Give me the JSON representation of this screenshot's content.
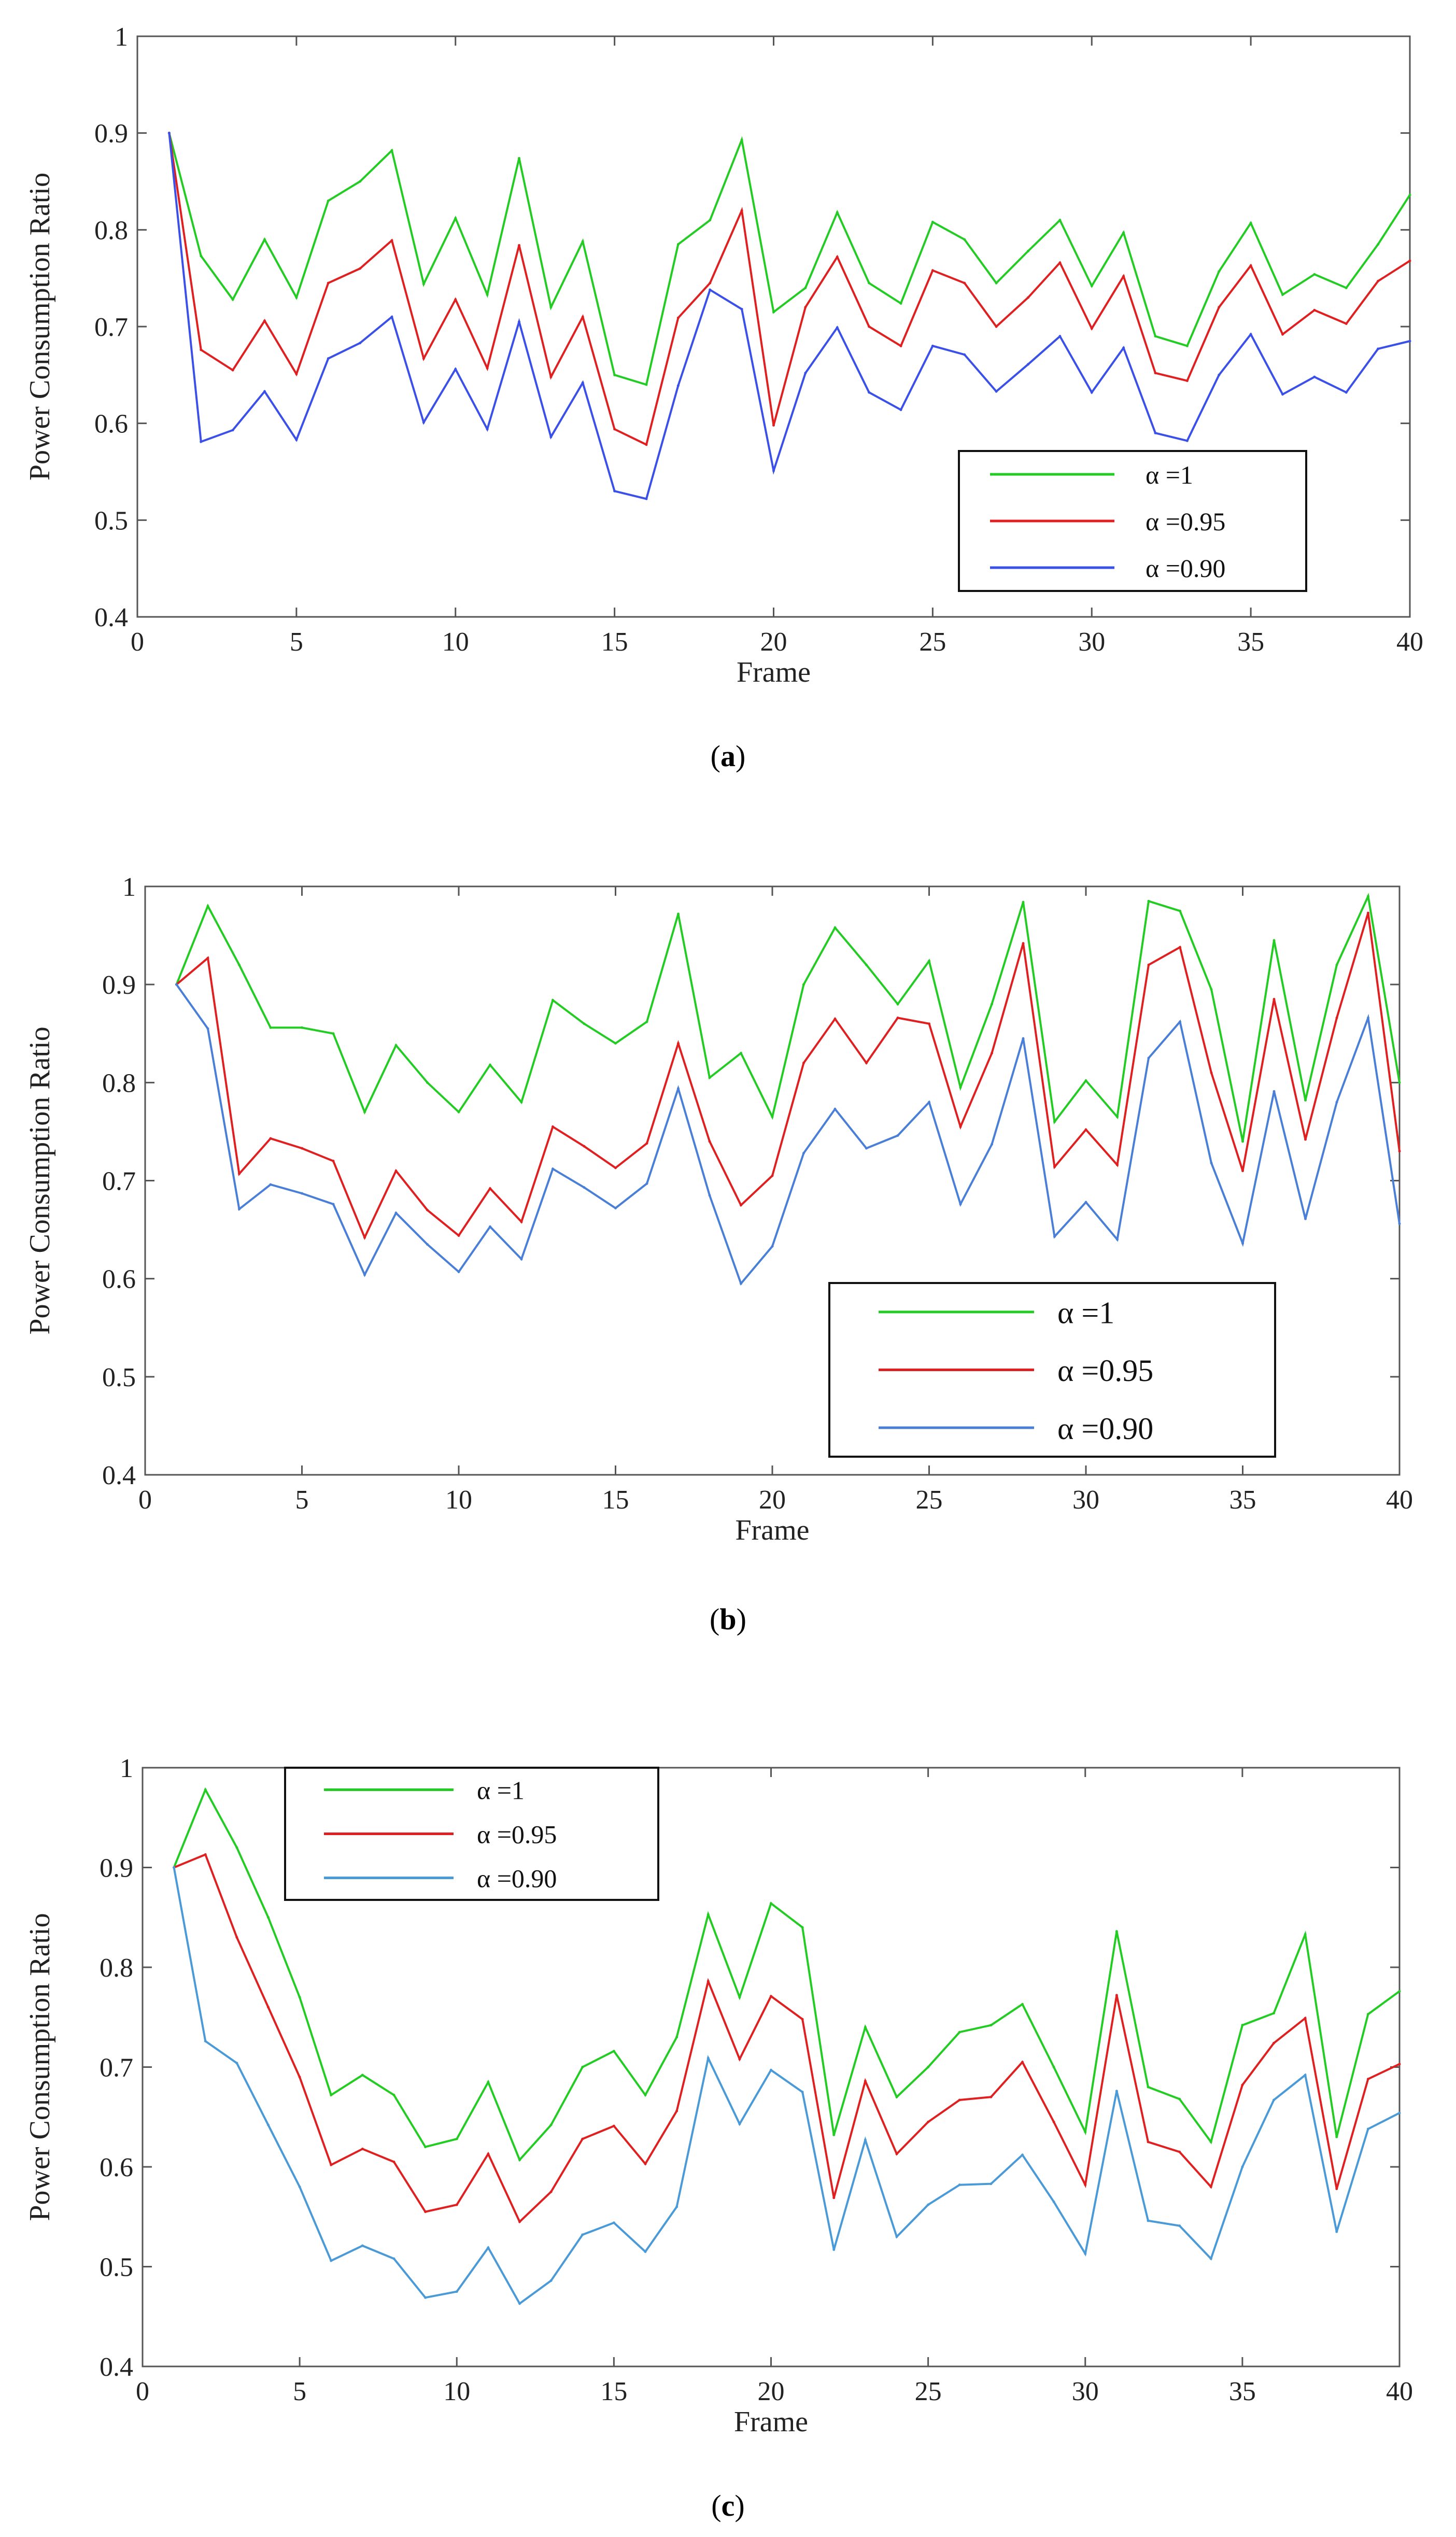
{
  "figure": {
    "captions": [
      {
        "open": "(",
        "letter": "a",
        "close": ")"
      },
      {
        "open": "(",
        "letter": "b",
        "close": ")"
      },
      {
        "open": "(",
        "letter": "c",
        "close": ")"
      }
    ]
  },
  "chart_data": [
    {
      "type": "line",
      "panel": "a",
      "title": "",
      "xlabel": "Frame",
      "ylabel": "Power Consumption Ratio",
      "xlim": [
        0,
        40
      ],
      "ylim": [
        0.4,
        1
      ],
      "xticks": [
        0,
        5,
        10,
        15,
        20,
        25,
        30,
        35,
        40
      ],
      "yticks": [
        0.4,
        0.5,
        0.6,
        0.7,
        0.8,
        0.9,
        1
      ],
      "ytick_labels": [
        "0.4",
        "0.5",
        "0.6",
        "0.7",
        "0.8",
        "0.9",
        "1"
      ],
      "legend_position": "lower-right",
      "x": [
        1,
        2,
        3,
        4,
        5,
        6,
        7,
        8,
        9,
        10,
        11,
        12,
        13,
        14,
        15,
        16,
        17,
        18,
        19,
        20,
        21,
        22,
        23,
        24,
        25,
        26,
        27,
        28,
        29,
        30,
        31,
        32,
        33,
        34,
        35,
        36,
        37,
        38,
        39,
        40
      ],
      "series": [
        {
          "name": "α =1",
          "color": "#22cc22",
          "values": [
            0.9,
            0.773,
            0.728,
            0.79,
            0.73,
            0.83,
            0.85,
            0.882,
            0.744,
            0.812,
            0.733,
            0.874,
            0.72,
            0.788,
            0.65,
            0.64,
            0.785,
            0.81,
            0.893,
            0.715,
            0.74,
            0.818,
            0.745,
            0.724,
            0.808,
            0.79,
            0.745,
            0.778,
            0.81,
            0.742,
            0.797,
            0.69,
            0.68,
            0.757,
            0.807,
            0.733,
            0.754,
            0.74,
            0.785,
            0.836
          ]
        },
        {
          "name": "α =0.95",
          "color": "#e02020",
          "values": [
            0.9,
            0.676,
            0.655,
            0.706,
            0.651,
            0.745,
            0.76,
            0.789,
            0.667,
            0.728,
            0.657,
            0.784,
            0.648,
            0.71,
            0.594,
            0.578,
            0.709,
            0.745,
            0.82,
            0.598,
            0.72,
            0.772,
            0.7,
            0.68,
            0.758,
            0.745,
            0.7,
            0.73,
            0.766,
            0.698,
            0.752,
            0.652,
            0.644,
            0.72,
            0.763,
            0.692,
            0.717,
            0.703,
            0.747,
            0.768
          ]
        },
        {
          "name": "α =0.90",
          "color": "#3a50e8",
          "values": [
            0.9,
            0.581,
            0.593,
            0.633,
            0.583,
            0.667,
            0.683,
            0.71,
            0.601,
            0.656,
            0.594,
            0.705,
            0.586,
            0.642,
            0.53,
            0.522,
            0.639,
            0.738,
            0.718,
            0.551,
            0.652,
            0.699,
            0.632,
            0.614,
            0.68,
            0.671,
            0.633,
            0.661,
            0.69,
            0.632,
            0.678,
            0.59,
            0.582,
            0.65,
            0.692,
            0.63,
            0.648,
            0.632,
            0.677,
            0.685
          ]
        }
      ]
    },
    {
      "type": "line",
      "panel": "b",
      "title": "",
      "xlabel": "Frame",
      "ylabel": "Power Consumption Ratio",
      "xlim": [
        0,
        40
      ],
      "ylim": [
        0.4,
        1
      ],
      "xticks": [
        0,
        5,
        10,
        15,
        20,
        25,
        30,
        35,
        40
      ],
      "yticks": [
        0.4,
        0.5,
        0.6,
        0.7,
        0.8,
        0.9,
        1
      ],
      "ytick_labels": [
        "0.4",
        "0.5",
        "0.6",
        "0.7",
        "0.8",
        "0.9",
        "1"
      ],
      "legend_position": "lower-right",
      "x": [
        1,
        2,
        3,
        4,
        5,
        6,
        7,
        8,
        9,
        10,
        11,
        12,
        13,
        14,
        15,
        16,
        17,
        18,
        19,
        20,
        21,
        22,
        23,
        24,
        25,
        26,
        27,
        28,
        29,
        30,
        31,
        32,
        33,
        34,
        35,
        36,
        37,
        38,
        39,
        40
      ],
      "series": [
        {
          "name": "α =1",
          "color": "#22cc22",
          "values": [
            0.9,
            0.98,
            0.92,
            0.856,
            0.856,
            0.85,
            0.77,
            0.838,
            0.8,
            0.77,
            0.818,
            0.78,
            0.884,
            0.86,
            0.84,
            0.862,
            0.972,
            0.805,
            0.83,
            0.765,
            0.9,
            0.958,
            0.92,
            0.88,
            0.924,
            0.795,
            0.88,
            0.984,
            0.76,
            0.802,
            0.765,
            0.985,
            0.975,
            0.895,
            0.74,
            0.945,
            0.782,
            0.92,
            0.99,
            0.8
          ]
        },
        {
          "name": "α =0.95",
          "color": "#e02020",
          "values": [
            0.9,
            0.927,
            0.707,
            0.743,
            0.733,
            0.72,
            0.642,
            0.71,
            0.67,
            0.644,
            0.692,
            0.658,
            0.755,
            0.735,
            0.713,
            0.738,
            0.84,
            0.74,
            0.675,
            0.705,
            0.82,
            0.865,
            0.82,
            0.866,
            0.86,
            0.755,
            0.83,
            0.942,
            0.714,
            0.752,
            0.716,
            0.92,
            0.938,
            0.81,
            0.71,
            0.885,
            0.742,
            0.866,
            0.973,
            0.73
          ]
        },
        {
          "name": "α =0.90",
          "color": "#4a7fd8",
          "values": [
            0.9,
            0.855,
            0.671,
            0.696,
            0.687,
            0.676,
            0.604,
            0.667,
            0.635,
            0.607,
            0.653,
            0.62,
            0.712,
            0.693,
            0.672,
            0.697,
            0.794,
            0.685,
            0.595,
            0.633,
            0.728,
            0.773,
            0.733,
            0.746,
            0.78,
            0.676,
            0.737,
            0.845,
            0.643,
            0.678,
            0.64,
            0.825,
            0.862,
            0.718,
            0.636,
            0.791,
            0.661,
            0.78,
            0.866,
            0.656
          ]
        }
      ]
    },
    {
      "type": "line",
      "panel": "c",
      "title": "",
      "xlabel": "Frame",
      "ylabel": "Power Consumption Ratio",
      "xlim": [
        0,
        40
      ],
      "ylim": [
        0.4,
        1
      ],
      "xticks": [
        0,
        5,
        10,
        15,
        20,
        25,
        30,
        35,
        40
      ],
      "yticks": [
        0.4,
        0.5,
        0.6,
        0.7,
        0.8,
        0.9,
        1
      ],
      "ytick_labels": [
        "0.4",
        "0.5",
        "0.6",
        "0.7",
        "0.8",
        "0.9",
        "1"
      ],
      "legend_position": "top-left",
      "x": [
        1,
        2,
        3,
        4,
        5,
        6,
        7,
        8,
        9,
        10,
        11,
        12,
        13,
        14,
        15,
        16,
        17,
        18,
        19,
        20,
        21,
        22,
        23,
        24,
        25,
        26,
        27,
        28,
        29,
        30,
        31,
        32,
        33,
        34,
        35,
        36,
        37,
        38,
        39,
        40
      ],
      "series": [
        {
          "name": "α =1",
          "color": "#22cc22",
          "values": [
            0.9,
            0.978,
            0.92,
            0.85,
            0.77,
            0.672,
            0.692,
            0.672,
            0.62,
            0.628,
            0.685,
            0.607,
            0.642,
            0.7,
            0.716,
            0.672,
            0.73,
            0.853,
            0.77,
            0.864,
            0.84,
            0.632,
            0.74,
            0.67,
            0.7,
            0.735,
            0.742,
            0.763,
            0.7,
            0.635,
            0.836,
            0.68,
            0.668,
            0.625,
            0.742,
            0.754,
            0.833,
            0.63,
            0.753,
            0.776
          ]
        },
        {
          "name": "α =0.95",
          "color": "#e02020",
          "values": [
            0.9,
            0.913,
            0.83,
            0.76,
            0.69,
            0.602,
            0.618,
            0.605,
            0.555,
            0.562,
            0.613,
            0.545,
            0.575,
            0.628,
            0.641,
            0.603,
            0.656,
            0.786,
            0.708,
            0.771,
            0.748,
            0.569,
            0.686,
            0.613,
            0.645,
            0.667,
            0.67,
            0.705,
            0.645,
            0.582,
            0.772,
            0.625,
            0.615,
            0.58,
            0.682,
            0.724,
            0.749,
            0.578,
            0.688,
            0.703
          ]
        },
        {
          "name": "α =0.90",
          "color": "#4a9ad8",
          "values": [
            0.9,
            0.726,
            0.704,
            0.642,
            0.58,
            0.506,
            0.521,
            0.508,
            0.469,
            0.475,
            0.519,
            0.463,
            0.486,
            0.532,
            0.544,
            0.515,
            0.56,
            0.709,
            0.643,
            0.697,
            0.675,
            0.517,
            0.627,
            0.53,
            0.562,
            0.582,
            0.583,
            0.612,
            0.565,
            0.513,
            0.676,
            0.546,
            0.541,
            0.508,
            0.6,
            0.667,
            0.692,
            0.535,
            0.638,
            0.654
          ]
        }
      ]
    }
  ]
}
